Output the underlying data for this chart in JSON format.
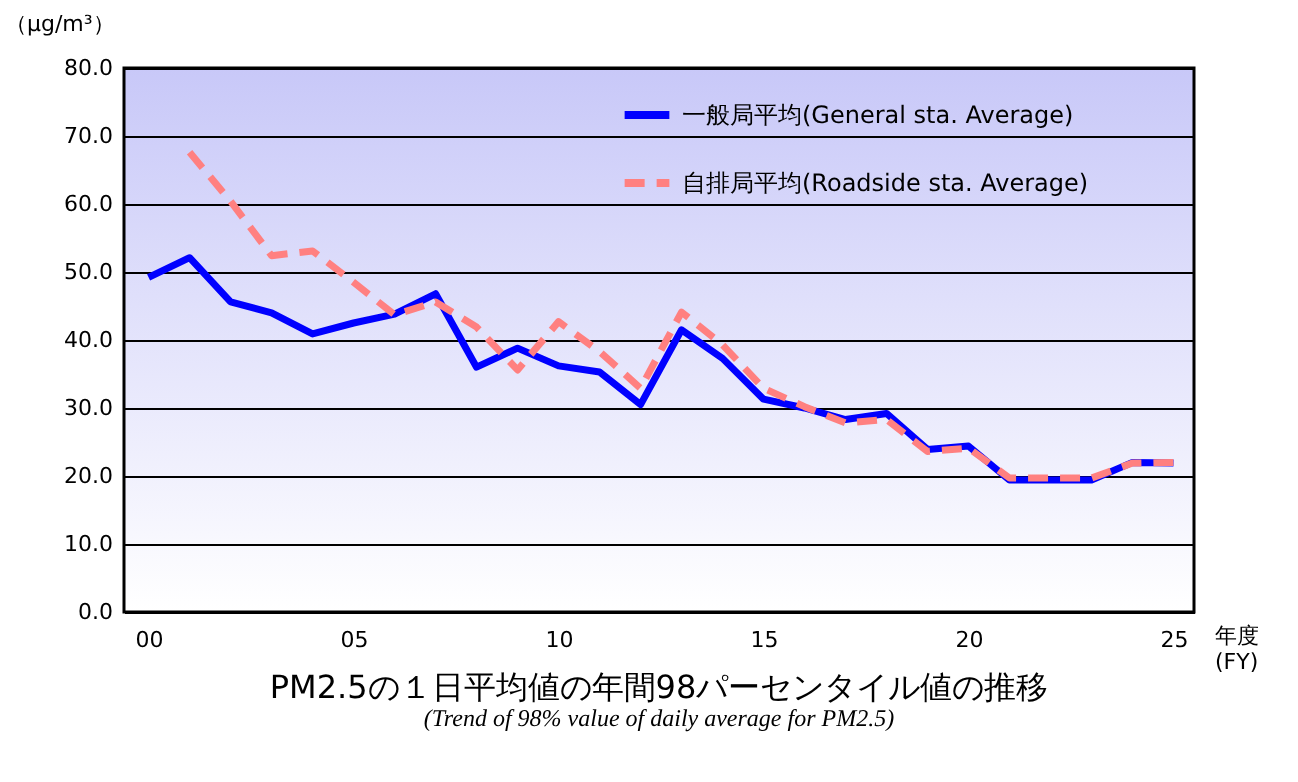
{
  "chart_data": {
    "type": "line",
    "title": "PM2.5の１日平均値の年間98パーセンタイル値の推移",
    "subtitle": "(Trend of 98% value of daily average for PM2.5)",
    "xlabel": "年度\n(FY)",
    "ylabel": "（μg/m³）",
    "x": [
      0,
      1,
      2,
      3,
      4,
      5,
      6,
      7,
      8,
      9,
      10,
      11,
      12,
      13,
      14,
      15,
      16,
      17,
      18,
      19,
      20,
      21,
      22,
      23,
      24,
      25
    ],
    "series": [
      {
        "name": "一般局平均(General sta. Average)",
        "color": "#0000ff",
        "line_style": "solid",
        "values": [
          49.2,
          52.1,
          45.6,
          44.0,
          40.9,
          42.5,
          43.8,
          46.8,
          36.0,
          38.8,
          36.2,
          35.3,
          30.5,
          41.5,
          37.3,
          31.3,
          30.0,
          28.3,
          29.2,
          23.9,
          24.4,
          19.4,
          19.4,
          19.4,
          22.0,
          21.9
        ]
      },
      {
        "name": "自排局平均(Roadside sta. Average)",
        "color": "#ff8080",
        "line_style": "dashed",
        "values": [
          null,
          67.6,
          60.4,
          52.4,
          53.1,
          48.5,
          43.7,
          45.6,
          41.9,
          35.6,
          42.7,
          38.3,
          32.9,
          44.1,
          39.3,
          32.9,
          30.2,
          27.8,
          28.3,
          23.6,
          24.1,
          19.7,
          19.7,
          19.7,
          21.9,
          22.0
        ]
      }
    ],
    "xlim": [
      -0.6,
      25.5
    ],
    "xticks": [
      {
        "value": 0,
        "label": "00"
      },
      {
        "value": 5,
        "label": "05"
      },
      10,
      15,
      20,
      25
    ],
    "ylim": [
      0,
      80
    ],
    "yticks": [
      {
        "value": 0,
        "label": "0.0"
      },
      {
        "value": 10,
        "label": "10.0"
      },
      {
        "value": 20,
        "label": "20.0"
      },
      {
        "value": 30,
        "label": "30.0"
      },
      {
        "value": 40,
        "label": "40.0"
      },
      {
        "value": 50,
        "label": "50.0"
      },
      {
        "value": 60,
        "label": "60.0"
      },
      {
        "value": 70,
        "label": "70.0"
      },
      {
        "value": 80,
        "label": "80.0"
      }
    ],
    "grid": "y",
    "legend": "top right",
    "marker": "none"
  }
}
